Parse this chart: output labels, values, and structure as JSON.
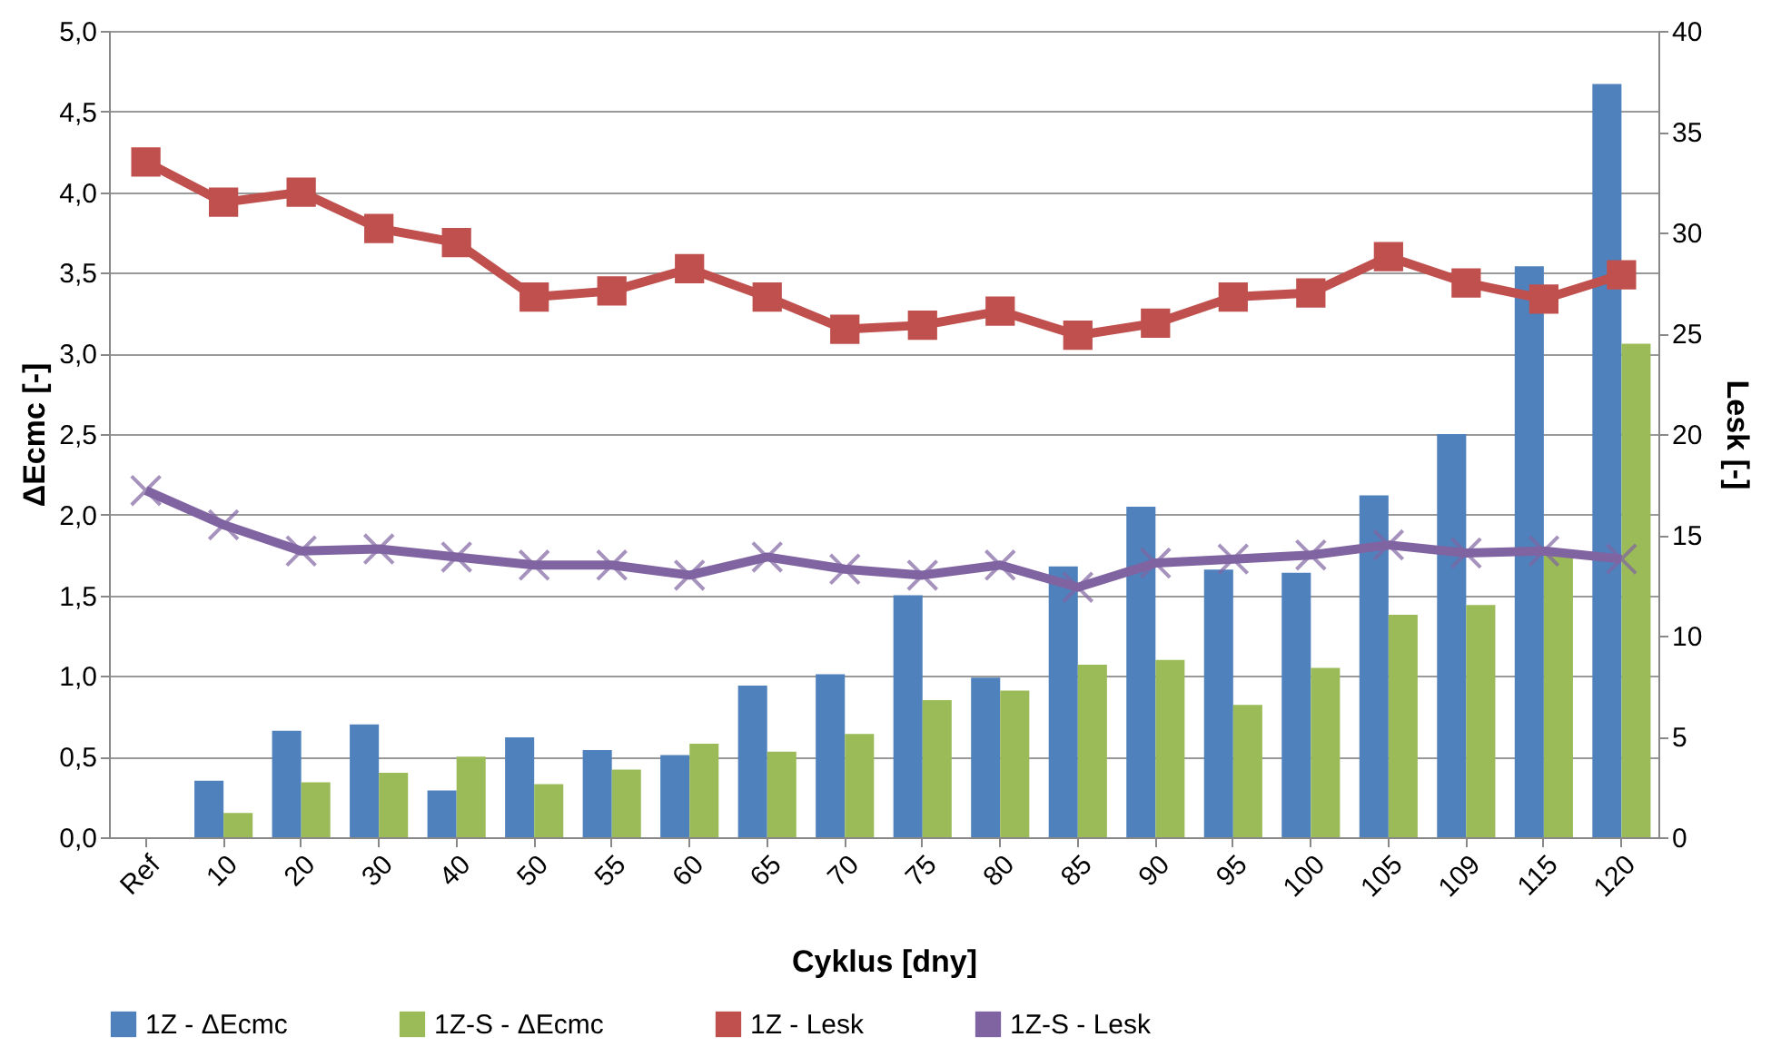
{
  "chart_data": {
    "type": "bar",
    "xlabel": "Cyklus [dny]",
    "ylabel": "ΔEcmc [-]",
    "y2label": "Lesk [-]",
    "categories": [
      "Ref",
      "10",
      "20",
      "30",
      "40",
      "50",
      "55",
      "60",
      "65",
      "70",
      "75",
      "80",
      "85",
      "90",
      "95",
      "100",
      "105",
      "109",
      "115",
      "120"
    ],
    "series": [
      {
        "name": "1Z - ΔEcmc",
        "color": "#4f81bd",
        "values": [
          null,
          0.35,
          0.66,
          0.7,
          0.29,
          0.62,
          0.54,
          0.51,
          0.94,
          1.01,
          1.5,
          0.99,
          1.68,
          2.05,
          1.66,
          1.64,
          2.12,
          2.5,
          3.54,
          4.67
        ]
      },
      {
        "name": "1Z-S - ΔEcmc",
        "color": "#9bbb59",
        "values": [
          null,
          0.15,
          0.34,
          0.4,
          0.5,
          0.33,
          0.42,
          0.58,
          0.53,
          0.64,
          0.85,
          0.91,
          1.07,
          1.1,
          0.82,
          1.05,
          1.38,
          1.44,
          1.75,
          3.06
        ]
      },
      {
        "name": "1Z - Lesk",
        "type": "line",
        "axis": "y2",
        "marker": "square",
        "color": "#c0504d",
        "values": [
          33.5,
          31.5,
          32.0,
          30.2,
          29.5,
          26.8,
          27.1,
          28.2,
          26.8,
          25.2,
          25.4,
          26.1,
          24.9,
          25.5,
          26.8,
          27.0,
          28.8,
          27.5,
          26.7,
          27.9
        ]
      },
      {
        "name": "1Z-S - Lesk",
        "type": "line",
        "axis": "y2",
        "marker": "cross",
        "color": "#8064a2",
        "values": [
          17.2,
          15.5,
          14.2,
          14.3,
          13.9,
          13.5,
          13.5,
          13.0,
          13.9,
          13.3,
          13.0,
          13.5,
          12.4,
          13.6,
          13.8,
          14.0,
          14.5,
          14.1,
          14.2,
          13.8
        ]
      }
    ],
    "ylim": [
      0,
      5
    ],
    "yticks": [
      {
        "value": 0,
        "label": "0,0"
      },
      {
        "value": 0.5,
        "label": "0,5"
      },
      {
        "value": 1,
        "label": "1,0"
      },
      {
        "value": 1.5,
        "label": "1,5"
      },
      {
        "value": 2,
        "label": "2,0"
      },
      {
        "value": 2.5,
        "label": "2,5"
      },
      {
        "value": 3,
        "label": "3,0"
      },
      {
        "value": 3.5,
        "label": "3,5"
      },
      {
        "value": 4,
        "label": "4,0"
      },
      {
        "value": 4.5,
        "label": "4,5"
      },
      {
        "value": 5,
        "label": "5,0"
      }
    ],
    "y2lim": [
      0,
      40
    ],
    "y2ticks": [
      0,
      5,
      10,
      15,
      20,
      25,
      30,
      35,
      40
    ],
    "grid": "y",
    "legend": "bottom",
    "line_style": "solid"
  }
}
